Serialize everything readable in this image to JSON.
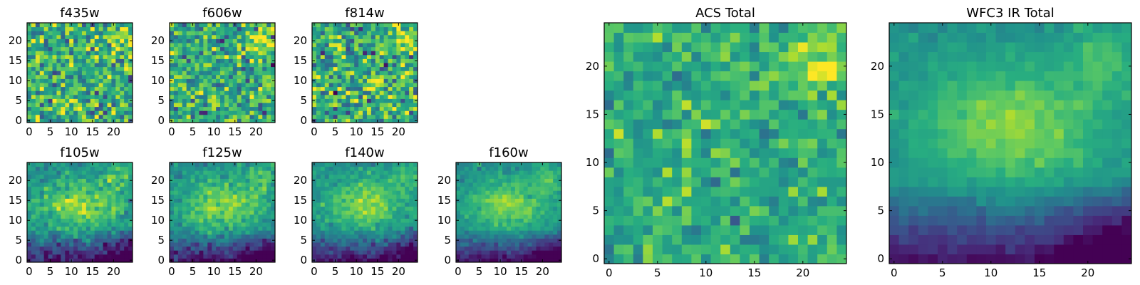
{
  "figure": {
    "colormap": "viridis",
    "colormap_stops": [
      "#440154",
      "#472d7b",
      "#3b528b",
      "#2c728e",
      "#21918c",
      "#28ae80",
      "#5ec962",
      "#addc30",
      "#fde725"
    ],
    "frame_color": "#000000",
    "grid_size": 25
  },
  "chart_data": [
    {
      "type": "heatmap",
      "title": "f435w",
      "pattern": "noise",
      "seed": 11,
      "noise": 0.32,
      "xticks": [
        0,
        5,
        10,
        15,
        20
      ],
      "yticks": [
        0,
        5,
        10,
        15,
        20
      ],
      "xlim": [
        -0.5,
        24.5
      ],
      "ylim": [
        -0.5,
        24.5
      ],
      "grid": false,
      "legend": "none"
    },
    {
      "type": "heatmap",
      "title": "f606w",
      "pattern": "noise",
      "seed": 23,
      "noise": 0.3,
      "xticks": [
        0,
        5,
        10,
        15,
        20
      ],
      "yticks": [
        0,
        5,
        10,
        15,
        20
      ],
      "xlim": [
        -0.5,
        24.5
      ],
      "ylim": [
        -0.5,
        24.5
      ],
      "grid": false,
      "legend": "none"
    },
    {
      "type": "heatmap",
      "title": "f814w",
      "pattern": "noise",
      "seed": 37,
      "noise": 0.32,
      "xticks": [
        0,
        5,
        10,
        15,
        20
      ],
      "yticks": [
        0,
        5,
        10,
        15,
        20
      ],
      "xlim": [
        -0.5,
        24.5
      ],
      "ylim": [
        -0.5,
        24.5
      ],
      "grid": false,
      "legend": "none"
    },
    {
      "type": "heatmap",
      "title": "f105w",
      "pattern": "ir",
      "seed": 41,
      "noise": 0.14,
      "xticks": [
        0,
        5,
        10,
        15,
        20
      ],
      "yticks": [
        0,
        5,
        10,
        15,
        20
      ],
      "xlim": [
        -0.5,
        24.5
      ],
      "ylim": [
        -0.5,
        24.5
      ],
      "grid": false,
      "legend": "none"
    },
    {
      "type": "heatmap",
      "title": "f125w",
      "pattern": "ir",
      "seed": 53,
      "noise": 0.12,
      "xticks": [
        0,
        5,
        10,
        15,
        20
      ],
      "yticks": [
        0,
        5,
        10,
        15,
        20
      ],
      "xlim": [
        -0.5,
        24.5
      ],
      "ylim": [
        -0.5,
        24.5
      ],
      "grid": false,
      "legend": "none"
    },
    {
      "type": "heatmap",
      "title": "f140w",
      "pattern": "ir",
      "seed": 67,
      "noise": 0.11,
      "xticks": [
        0,
        5,
        10,
        15,
        20
      ],
      "yticks": [
        0,
        5,
        10,
        15,
        20
      ],
      "xlim": [
        -0.5,
        24.5
      ],
      "ylim": [
        -0.5,
        24.5
      ],
      "grid": false,
      "legend": "none"
    },
    {
      "type": "heatmap",
      "title": "f160w",
      "pattern": "ir",
      "seed": 79,
      "noise": 0.08,
      "xticks": [
        0,
        5,
        10,
        15,
        20
      ],
      "yticks": [
        0,
        5,
        10,
        15,
        20
      ],
      "xlim": [
        -0.5,
        24.5
      ],
      "ylim": [
        -0.5,
        24.5
      ],
      "grid": false,
      "legend": "none"
    },
    {
      "type": "heatmap",
      "title": "ACS Total",
      "pattern": "noise",
      "seed": 97,
      "noise": 0.18,
      "xticks": [
        0,
        5,
        10,
        15,
        20
      ],
      "yticks": [
        0,
        5,
        10,
        15,
        20
      ],
      "xlim": [
        -0.5,
        24.5
      ],
      "ylim": [
        -0.5,
        24.5
      ],
      "grid": false,
      "legend": "none"
    },
    {
      "type": "heatmap",
      "title": "WFC3 IR Total",
      "pattern": "ir",
      "seed": 101,
      "noise": 0.05,
      "xticks": [
        0,
        5,
        10,
        15,
        20
      ],
      "yticks": [
        0,
        5,
        10,
        15,
        20
      ],
      "xlim": [
        -0.5,
        24.5
      ],
      "ylim": [
        -0.5,
        24.5
      ],
      "grid": false,
      "legend": "none"
    }
  ]
}
